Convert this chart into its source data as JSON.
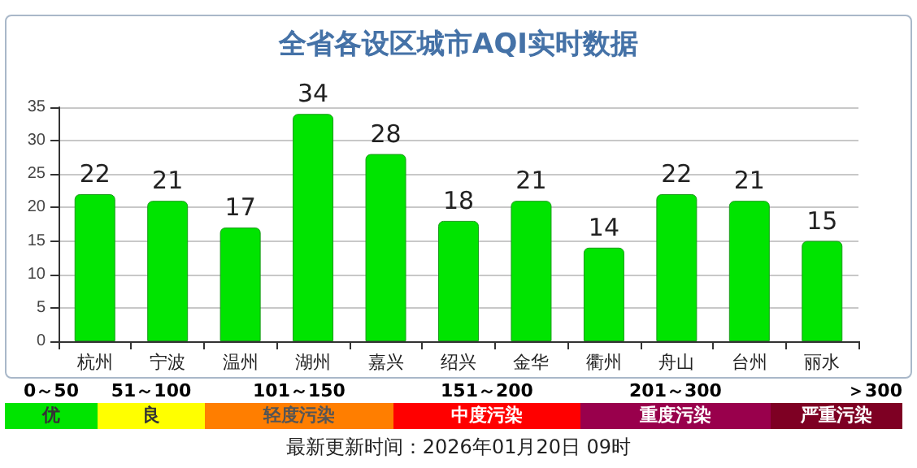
{
  "chart_data": {
    "type": "bar",
    "title": "全省各设区城市AQI实时数据",
    "categories": [
      "杭州",
      "宁波",
      "温州",
      "湖州",
      "嘉兴",
      "绍兴",
      "金华",
      "衢州",
      "舟山",
      "台州",
      "丽水"
    ],
    "values": [
      22,
      21,
      17,
      34,
      28,
      18,
      21,
      14,
      22,
      21,
      15
    ],
    "color": "#00e400",
    "ylim": [
      0,
      35
    ],
    "yticks": [
      0,
      5,
      10,
      15,
      20,
      25,
      30,
      35
    ],
    "grid": "y",
    "data_labels": true,
    "annotations": [
      "0～50",
      "51～100",
      "101～150",
      "151～200",
      "201～300",
      "＞300",
      "优",
      "良",
      "轻度污染",
      "中度污染",
      "重度污染",
      "严重污染",
      "最新更新时间：2026年01月20日 09时"
    ]
  }
}
